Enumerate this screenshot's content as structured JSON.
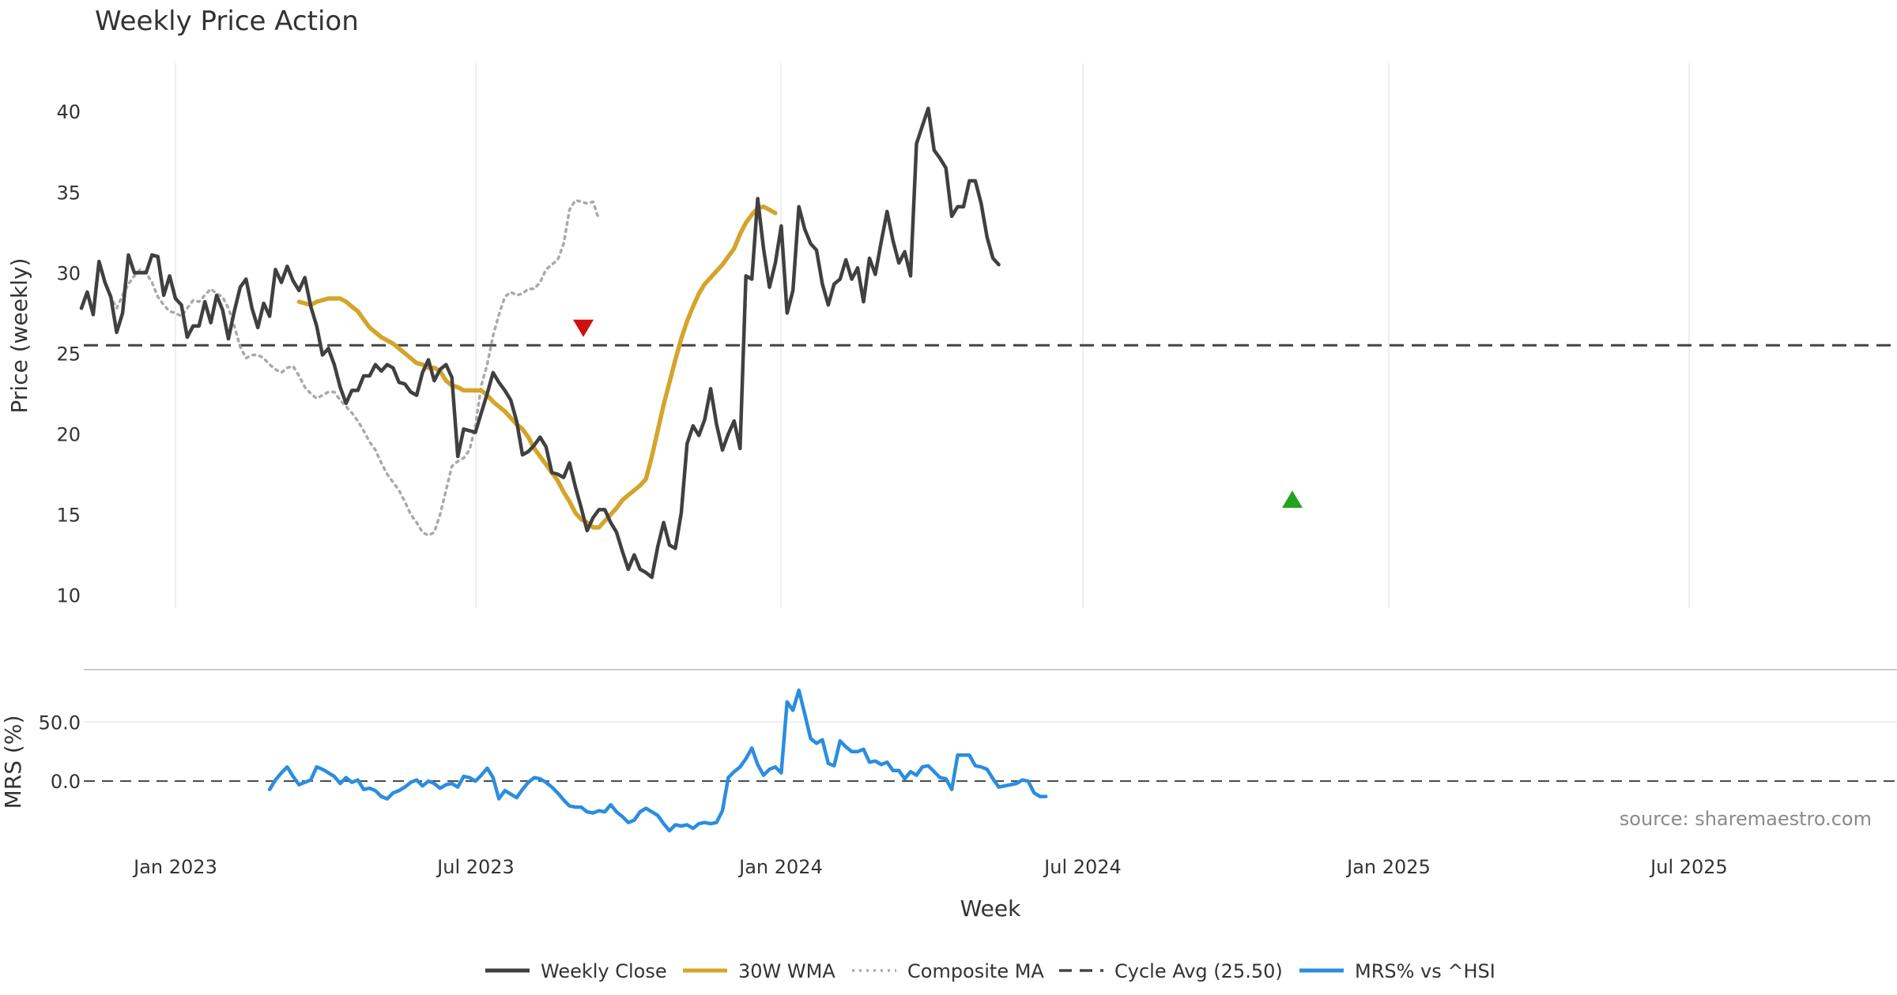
{
  "chart_data": {
    "type": "line",
    "title": "Weekly Price Action",
    "xlabel": "Week",
    "source_text": "source: sharemaestro.com",
    "x_ticks": [
      "Jan 2023",
      "Jul 2023",
      "Jan 2024",
      "Jul 2024",
      "Jan 2025",
      "Jul 2025"
    ],
    "price_panel": {
      "ylabel": "Price (weekly)",
      "ylim": [
        9,
        43
      ],
      "yticks": [
        "10",
        "15",
        "20",
        "25",
        "30",
        "35",
        "40"
      ],
      "weekly_close": [
        27.8,
        28.8,
        27.4,
        30.7,
        29.4,
        28.5,
        26.3,
        27.5,
        31.1,
        30.0,
        30.0,
        30.0,
        31.1,
        31.0,
        28.6,
        29.8,
        28.4,
        28.0,
        26.0,
        26.7,
        26.7,
        28.2,
        26.9,
        28.6,
        27.7,
        25.9,
        27.6,
        29.1,
        29.6,
        27.8,
        26.6,
        28.1,
        27.3,
        30.2,
        29.4,
        30.4,
        29.5,
        28.9,
        29.7,
        27.9,
        26.7,
        24.9,
        25.3,
        24.3,
        22.9,
        21.9,
        22.7,
        22.7,
        23.6,
        23.6,
        24.3,
        23.9,
        24.3,
        24.1,
        23.2,
        23.1,
        22.6,
        22.4,
        23.8,
        24.6,
        23.3,
        24.0,
        24.3,
        23.5,
        18.6,
        20.3,
        20.2,
        20.1,
        21.3,
        22.5,
        23.8,
        23.2,
        22.7,
        22.1,
        20.8,
        18.7,
        18.9,
        19.3,
        19.8,
        19.2,
        17.6,
        17.5,
        17.3,
        18.2,
        16.7,
        15.4,
        14.0,
        14.8,
        15.3,
        15.3,
        14.5,
        13.9,
        12.7,
        11.6,
        12.5,
        11.6,
        11.4,
        11.1,
        13.0,
        14.5,
        13.1,
        12.9,
        15.1,
        19.4,
        20.5,
        19.9,
        20.9,
        22.8,
        20.6,
        19.0,
        20.0,
        20.8,
        19.1,
        29.8,
        29.6,
        34.6,
        31.5,
        29.1,
        30.6,
        32.9,
        27.5,
        28.9,
        34.1,
        32.7,
        31.8,
        31.4,
        29.3,
        28.0,
        29.3,
        29.6,
        30.8,
        29.6,
        30.3,
        28.2,
        30.9,
        29.9,
        31.9,
        33.8,
        32.0,
        30.6,
        31.3,
        29.8,
        38.0,
        39.1,
        40.2,
        37.6,
        37.1,
        36.5,
        33.5,
        34.1,
        34.1,
        35.7,
        35.7,
        34.3,
        32.2,
        30.9,
        30.5
      ],
      "wma_30w": [
        28.2,
        28.1,
        28.0,
        28.2,
        28.3,
        28.4,
        28.4,
        28.4,
        28.2,
        27.9,
        27.6,
        27.1,
        26.6,
        26.3,
        26.0,
        25.8,
        25.6,
        25.3,
        25.0,
        24.7,
        24.4,
        24.3,
        24.1,
        24.1,
        23.9,
        23.3,
        23.0,
        22.9,
        22.7,
        22.7,
        22.7,
        22.7,
        22.4,
        22.0,
        21.7,
        21.4,
        21.0,
        20.6,
        20.3,
        19.8,
        19.1,
        18.6,
        18.1,
        17.6,
        17.1,
        16.4,
        15.8,
        15.1,
        14.7,
        14.5,
        14.2,
        14.2,
        14.6,
        15.0,
        15.4,
        15.9,
        16.2,
        16.5,
        16.8,
        17.2,
        18.6,
        20.2,
        21.8,
        23.2,
        24.6,
        25.9,
        27.0,
        27.9,
        28.7,
        29.3,
        29.7,
        30.1,
        30.5,
        31.0,
        31.5,
        32.4,
        33.1,
        33.6,
        34.0,
        34.1,
        33.9,
        33.7
      ],
      "composite_ma": [
        29.4,
        28.5,
        27.8,
        28.6,
        29.3,
        29.8,
        30.2,
        30.0,
        29.4,
        28.5,
        28.0,
        27.6,
        27.5,
        27.3,
        27.8,
        28.3,
        28.2,
        28.6,
        29.0,
        28.7,
        28.5,
        27.8,
        26.7,
        25.4,
        24.7,
        24.9,
        24.9,
        24.7,
        24.3,
        24.0,
        23.8,
        24.1,
        24.2,
        23.6,
        22.9,
        22.5,
        22.2,
        22.4,
        22.6,
        22.6,
        22.1,
        21.7,
        21.3,
        20.8,
        20.2,
        19.5,
        19.0,
        18.2,
        17.5,
        17.0,
        16.5,
        15.8,
        15.0,
        14.5,
        13.9,
        13.7,
        13.9,
        15.0,
        16.5,
        18.0,
        18.3,
        18.5,
        19.0,
        20.5,
        23.0,
        24.3,
        26.1,
        27.4,
        28.5,
        28.8,
        28.6,
        28.7,
        29.0,
        29.0,
        29.4,
        30.2,
        30.5,
        30.8,
        31.8,
        33.9,
        34.5,
        34.4,
        34.3,
        34.4,
        33.3
      ],
      "cycle_avg": 25.5,
      "sell_signal_price": 26.6,
      "buy_signal_price": 15.9
    },
    "mrs_panel": {
      "ylabel": "MRS (%)",
      "ylim": [
        -50,
        85
      ],
      "yticks": [
        "0.0",
        "50.0"
      ],
      "values": [
        -7,
        1,
        7,
        12,
        4,
        -3,
        -1,
        1,
        12,
        10,
        7,
        4,
        -2,
        3,
        -1,
        1,
        -7,
        -6,
        -8,
        -13,
        -15,
        -10,
        -8,
        -5,
        -1,
        1,
        -4,
        0,
        -2,
        -6,
        -3,
        -2,
        -5,
        4,
        3,
        0,
        5,
        11,
        3,
        -15,
        -8,
        -11,
        -14,
        -7,
        -1,
        3,
        2,
        -1,
        -5,
        -10,
        -16,
        -21,
        -22,
        -22,
        -26,
        -27,
        -25,
        -26,
        -20,
        -26,
        -30,
        -35,
        -33,
        -26,
        -23,
        -26,
        -29,
        -36,
        -42,
        -37,
        -38,
        -37,
        -40,
        -36,
        -35,
        -36,
        -35,
        -25,
        3,
        8,
        12,
        19,
        28,
        14,
        5,
        10,
        12,
        7,
        67,
        60,
        77,
        57,
        36,
        32,
        35,
        15,
        13,
        34,
        29,
        25,
        25,
        27,
        16,
        17,
        14,
        16,
        9,
        9,
        2,
        8,
        5,
        12,
        13,
        8,
        3,
        2,
        -7,
        22,
        22,
        22,
        13,
        12,
        10,
        2,
        -5,
        -4,
        -3,
        -2,
        1,
        0,
        -10,
        -13,
        -13
      ]
    },
    "legend": [
      {
        "label": "Weekly Close",
        "color": "#404040",
        "style": "solid"
      },
      {
        "label": "30W WMA",
        "color": "#d4a52a",
        "style": "solid"
      },
      {
        "label": "Composite MA",
        "color": "#aaaaaa",
        "style": "dotted"
      },
      {
        "label": "Cycle Avg (25.50)",
        "color": "#444444",
        "style": "dashed"
      },
      {
        "label": "MRS% vs ^HSI",
        "color": "#2b8de0",
        "style": "solid"
      }
    ],
    "colors": {
      "close": "#404040",
      "wma": "#d4a52a",
      "composite": "#aaaaaa",
      "cycle": "#444444",
      "mrs": "#2b8de0",
      "sell": "#cc1111",
      "buy": "#22a322"
    }
  }
}
